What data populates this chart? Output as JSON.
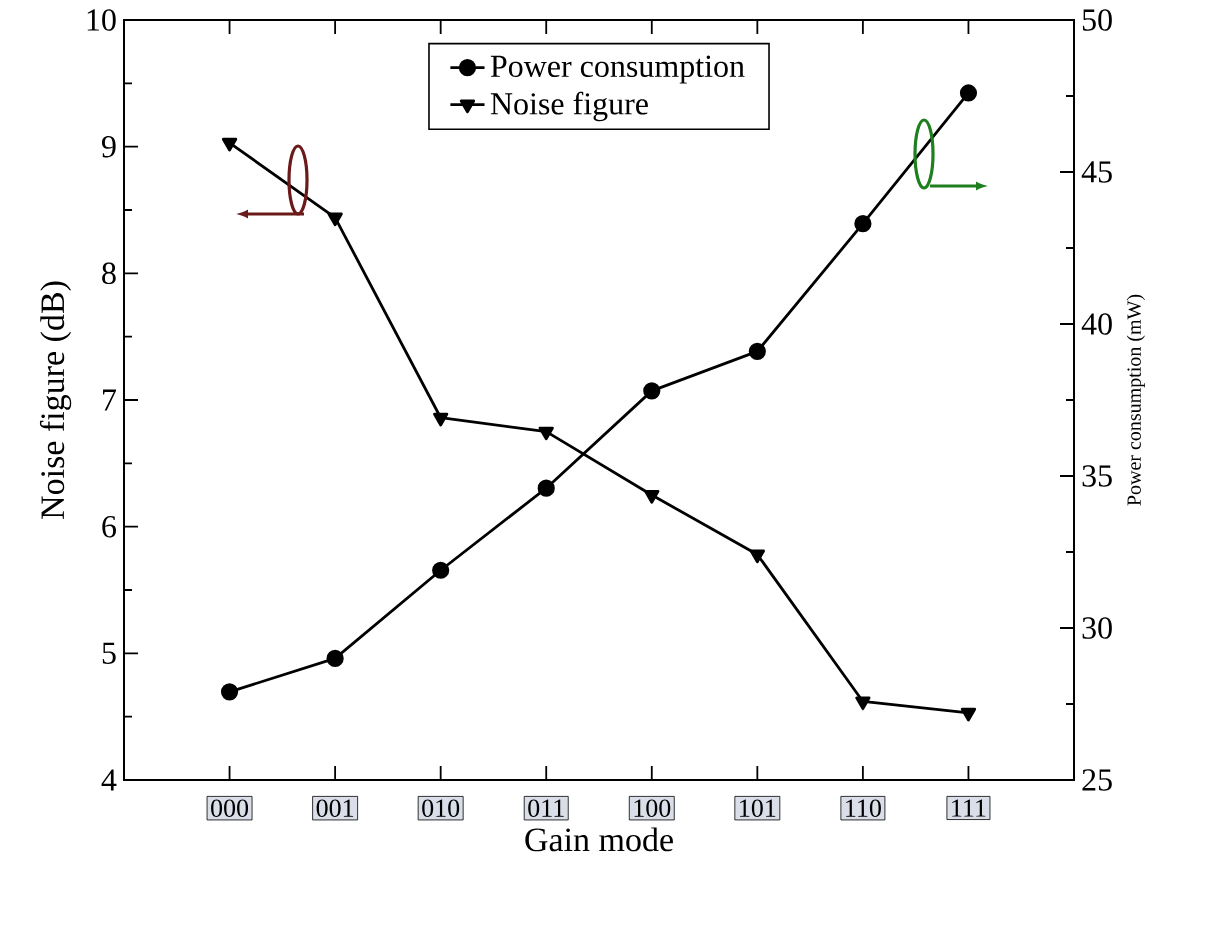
{
  "chart_data": {
    "type": "line",
    "xlabel": "Gain mode",
    "ylabel": "Noise figure (dB)",
    "y2label": "Power consumption (mW)",
    "legend": "top",
    "categories": [
      "000",
      "001",
      "010",
      "011",
      "100",
      "101",
      "110",
      "111"
    ],
    "series": [
      {
        "name": "Power consumption",
        "color": "#000000",
        "axis": "y2",
        "marker": "circle",
        "values": [
          27.9,
          29.0,
          31.9,
          34.6,
          37.8,
          39.1,
          43.3,
          47.6
        ]
      },
      {
        "name": "Noise figure",
        "color": "#000000",
        "marker": "triangle",
        "values": [
          9.03,
          8.44,
          6.86,
          6.75,
          6.25,
          5.78,
          4.62,
          4.53
        ]
      }
    ],
    "ylim": [
      4,
      10
    ],
    "yticks": [
      4,
      5,
      6,
      7,
      8,
      9,
      10
    ],
    "y2lim": [
      25,
      50
    ],
    "y2ticks": [
      25,
      30,
      35,
      40,
      45,
      50
    ]
  }
}
